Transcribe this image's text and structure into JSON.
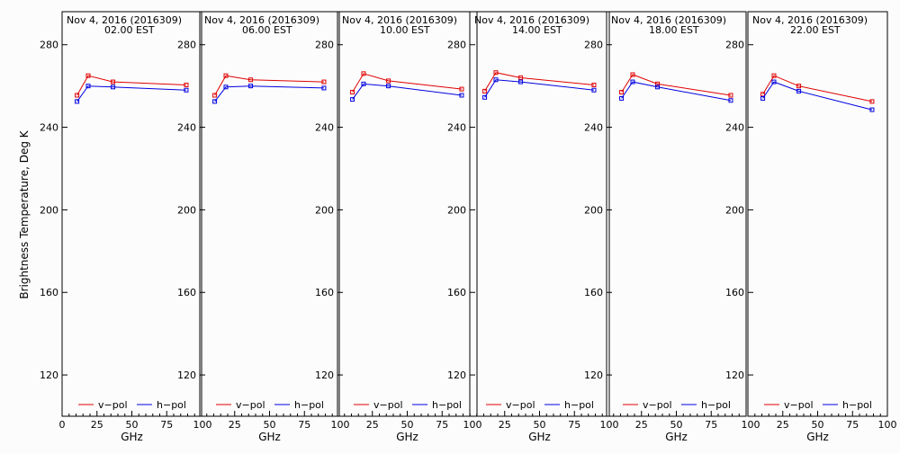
{
  "ylabel": "Brightness Temperature, Deg K",
  "xlabel": "GHz",
  "xticks": [
    "0",
    "25",
    "50",
    "75",
    "100"
  ],
  "yticks": [
    "120",
    "160",
    "200",
    "240",
    "280"
  ],
  "legend": {
    "v": "v−pol",
    "h": "h−pol"
  },
  "colors": {
    "v": "#e00000",
    "h": "#0000e0"
  },
  "chart_data": [
    {
      "type": "line",
      "title": "Nov  4, 2016 (2016309)",
      "subtitle": "02.00 EST",
      "x": [
        10.7,
        18.7,
        36.5,
        89.0
      ],
      "xlim": [
        0,
        100
      ],
      "ylim": [
        100,
        296
      ],
      "series": [
        {
          "name": "v−pol",
          "values": [
            255.5,
            265,
            262,
            260.5
          ]
        },
        {
          "name": "h−pol",
          "values": [
            252.5,
            260,
            259.5,
            258
          ]
        }
      ]
    },
    {
      "type": "line",
      "title": "Nov  4, 2016 (2016309)",
      "subtitle": "06.00 EST",
      "x": [
        10.7,
        18.7,
        36.5,
        89.0
      ],
      "xlim": [
        0,
        100
      ],
      "ylim": [
        100,
        296
      ],
      "series": [
        {
          "name": "v−pol",
          "values": [
            255.5,
            265,
            263,
            262
          ]
        },
        {
          "name": "h−pol",
          "values": [
            252.5,
            259.5,
            260,
            259
          ]
        }
      ]
    },
    {
      "type": "line",
      "title": "Nov  4, 2016 (2016309)",
      "subtitle": "10.00 EST",
      "x": [
        10.7,
        18.7,
        36.5,
        89.0
      ],
      "xlim": [
        0,
        100
      ],
      "ylim": [
        100,
        296
      ],
      "series": [
        {
          "name": "v−pol",
          "values": [
            257,
            266,
            262.5,
            258.5
          ]
        },
        {
          "name": "h−pol",
          "values": [
            253.5,
            261,
            260,
            255.5
          ]
        }
      ]
    },
    {
      "type": "line",
      "title": "Nov  4, 2016 (2016309)",
      "subtitle": "14.00 EST",
      "x": [
        10.7,
        18.7,
        36.5,
        89.0
      ],
      "xlim": [
        0,
        100
      ],
      "ylim": [
        100,
        296
      ],
      "series": [
        {
          "name": "v−pol",
          "values": [
            257.5,
            266.5,
            264,
            260.5
          ]
        },
        {
          "name": "h−pol",
          "values": [
            254.5,
            263,
            262,
            258
          ]
        }
      ]
    },
    {
      "type": "line",
      "title": "Nov  4, 2016 (2016309)",
      "subtitle": "18.00 EST",
      "x": [
        10.7,
        18.7,
        36.5,
        89.0
      ],
      "xlim": [
        0,
        100
      ],
      "ylim": [
        100,
        296
      ],
      "series": [
        {
          "name": "v−pol",
          "values": [
            257,
            265.5,
            261,
            255.5
          ]
        },
        {
          "name": "h−pol",
          "values": [
            254,
            262,
            259.5,
            253
          ]
        }
      ]
    },
    {
      "type": "line",
      "title": "Nov  4, 2016 (2016309)",
      "subtitle": "22.00 EST",
      "x": [
        10.7,
        18.7,
        36.5,
        89.0
      ],
      "xlim": [
        0,
        100
      ],
      "ylim": [
        100,
        296
      ],
      "series": [
        {
          "name": "v−pol",
          "values": [
            256,
            265,
            260,
            252.5
          ]
        },
        {
          "name": "h−pol",
          "values": [
            254,
            262,
            257.5,
            248.5
          ]
        }
      ]
    }
  ]
}
